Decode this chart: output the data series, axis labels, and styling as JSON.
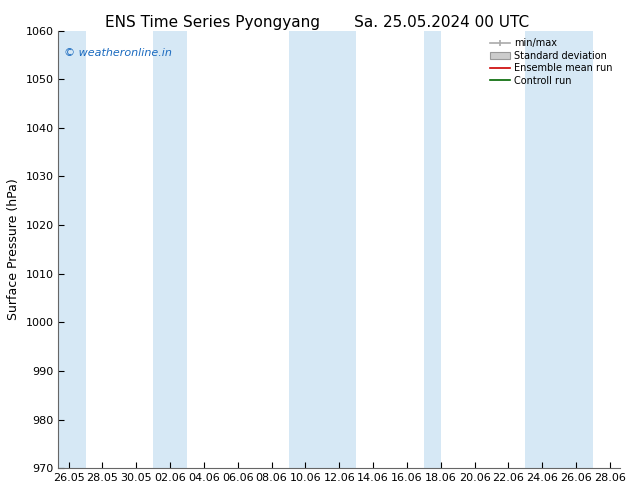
{
  "title_left": "ENS Time Series Pyongyang",
  "title_right": "Sa. 25.05.2024 00 UTC",
  "ylabel": "Surface Pressure (hPa)",
  "ylim": [
    970,
    1060
  ],
  "yticks": [
    970,
    980,
    990,
    1000,
    1010,
    1020,
    1030,
    1040,
    1050,
    1060
  ],
  "xtick_labels": [
    "26.05",
    "28.05",
    "30.05",
    "02.06",
    "04.06",
    "06.06",
    "08.06",
    "10.06",
    "12.06",
    "14.06",
    "16.06",
    "18.06",
    "20.06",
    "22.06",
    "24.06",
    "26.06",
    "28.06"
  ],
  "watermark": "© weatheronline.in",
  "watermark_color": "#1a6abf",
  "legend_entries": [
    "min/max",
    "Standard deviation",
    "Ensemble mean run",
    "Controll run"
  ],
  "band_color": "#d6e8f5",
  "background_color": "#ffffff",
  "figsize": [
    6.34,
    4.9
  ],
  "dpi": 100,
  "title_fontsize": 11,
  "ylabel_fontsize": 9,
  "tick_fontsize": 8,
  "watermark_fontsize": 8
}
